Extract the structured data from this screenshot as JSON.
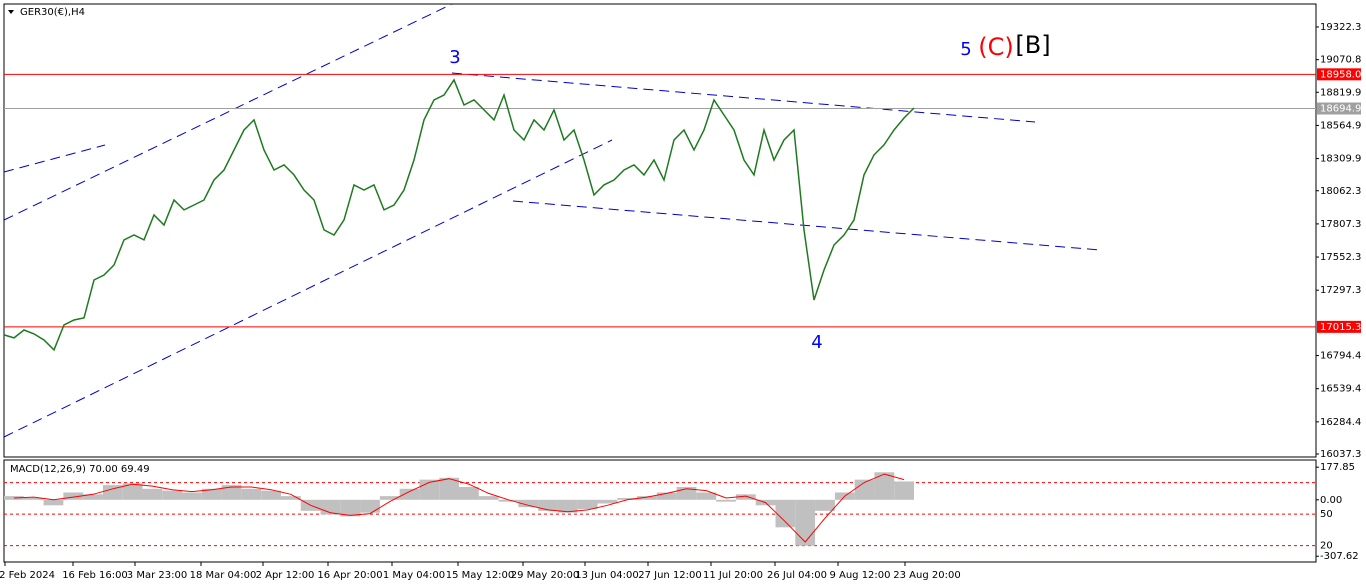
{
  "chart_data": [
    {
      "type": "price",
      "title": "GER30(€),H4",
      "color": "#1f7a1f",
      "ylim": [
        16014,
        19499
      ],
      "yticks": [
        19322.3,
        19070.8,
        18819.9,
        18564.9,
        18309.9,
        18062.3,
        17807.3,
        17552.3,
        17297.3,
        16794.4,
        16539.4,
        16284.4,
        16037.3
      ],
      "time_labels": [
        "2 Feb 2024",
        "16 Feb 16:00",
        "3 Mar 23:00",
        "18 Mar 04:00",
        "2 Apr 12:00",
        "16 Apr 20:00",
        "1 May 04:00",
        "15 May 12:00",
        "29 May 20:00",
        "13 Jun 04:00",
        "27 Jun 12:00",
        "11 Jul 20:00",
        "26 Jul 04:00",
        "9 Aug 12:00",
        "23 Aug 20:00"
      ],
      "values": [
        16953,
        16930,
        16991,
        16961,
        16914,
        16838,
        17030,
        17068,
        17084,
        17376,
        17414,
        17491,
        17684,
        17722,
        17684,
        17876,
        17799,
        17991,
        17915,
        17953,
        17991,
        18145,
        18222,
        18376,
        18530,
        18607,
        18376,
        18222,
        18261,
        18184,
        18068,
        17991,
        17761,
        17722,
        17838,
        18107,
        18068,
        18107,
        17915,
        17953,
        18068,
        18299,
        18607,
        18761,
        18799,
        18915,
        18722,
        18761,
        18684,
        18607,
        18799,
        18530,
        18453,
        18607,
        18530,
        18684,
        18453,
        18530,
        18299,
        18030,
        18107,
        18145,
        18222,
        18261,
        18184,
        18299,
        18145,
        18453,
        18530,
        18376,
        18530,
        18761,
        18645,
        18530,
        18299,
        18184,
        18530,
        18299,
        18453,
        18530,
        17761,
        17222,
        17453,
        17645,
        17722,
        17838,
        18184,
        18338,
        18415,
        18530,
        18622,
        18699
      ],
      "price_lines": [
        {
          "value": 18958,
          "label": "18958.0",
          "color": "#ff0000"
        },
        {
          "value": 18694.9,
          "label": "18694.9",
          "color": "#a0a0a0"
        },
        {
          "value": 17015.3,
          "label": "17015.3",
          "color": "#ff0000"
        }
      ],
      "annotations": [
        {
          "text": "3",
          "color": "#0000ff"
        },
        {
          "text": "4",
          "color": "#0000ff"
        },
        {
          "text": "5",
          "color": "#0000ff"
        },
        {
          "text": "(C)",
          "color": "#ff0000"
        },
        {
          "text": "[B]",
          "color": "#000000"
        }
      ]
    },
    {
      "type": "macd",
      "title": "MACD(12,26,9) 70.00 69.49",
      "hist_color": "#c0c0c0",
      "signal_color": "#ff0000",
      "ylim": [
        -339,
        217
      ],
      "yticks": [
        177.85,
        {
          "value": 0,
          "label": "0.00"
        },
        -307.62
      ],
      "levels": [
        94,
        -78,
        -250
      ],
      "level_labels": [
        "50",
        "20"
      ],
      "histogram": [
        20,
        10,
        -30,
        40,
        30,
        80,
        90,
        60,
        50,
        40,
        60,
        80,
        60,
        50,
        20,
        -60,
        -80,
        -90,
        -70,
        20,
        60,
        110,
        120,
        70,
        20,
        -10,
        -40,
        -60,
        -70,
        -50,
        -20,
        10,
        20,
        40,
        70,
        40,
        -10,
        30,
        -30,
        -150,
        -250,
        -60,
        40,
        110,
        150,
        100
      ],
      "signal": [
        10,
        15,
        0,
        15,
        30,
        60,
        85,
        75,
        55,
        45,
        55,
        70,
        70,
        55,
        30,
        -30,
        -70,
        -85,
        -75,
        -10,
        45,
        95,
        115,
        85,
        35,
        0,
        -30,
        -55,
        -65,
        -55,
        -30,
        0,
        15,
        35,
        60,
        50,
        10,
        20,
        -15,
        -120,
        -230,
        -100,
        20,
        95,
        140,
        110
      ]
    }
  ]
}
